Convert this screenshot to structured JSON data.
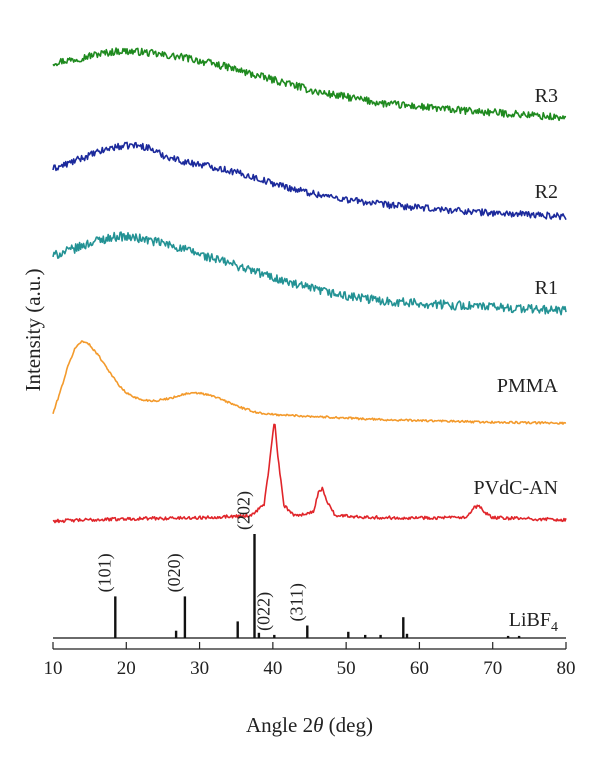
{
  "chart_data": {
    "type": "line",
    "xlabel": "Angle 2θ (deg)",
    "ylabel": "Intensity (a.u.)",
    "xlim": [
      10,
      80
    ],
    "xticks": [
      "10",
      "20",
      "30",
      "40",
      "50",
      "60",
      "70",
      "80"
    ],
    "y_ticks_shown": false,
    "grid": false,
    "legend": "none (series labelled at right end of each trace)",
    "series": [
      {
        "name": "R3",
        "color": "#1f8a1f",
        "noise": 0.045,
        "points": [
          [
            10,
            0.86
          ],
          [
            13,
            0.9
          ],
          [
            16,
            0.96
          ],
          [
            19,
            1.0
          ],
          [
            22,
            0.99
          ],
          [
            25,
            0.95
          ],
          [
            28,
            0.92
          ],
          [
            31,
            0.86
          ],
          [
            34,
            0.8
          ],
          [
            37,
            0.72
          ],
          [
            40,
            0.65
          ],
          [
            43,
            0.58
          ],
          [
            46,
            0.5
          ],
          [
            50,
            0.44
          ],
          [
            55,
            0.36
          ],
          [
            60,
            0.32
          ],
          [
            65,
            0.28
          ],
          [
            70,
            0.25
          ],
          [
            75,
            0.22
          ],
          [
            80,
            0.18
          ]
        ]
      },
      {
        "name": "R2",
        "color": "#1c2a9c",
        "noise": 0.04,
        "points": [
          [
            10,
            0.72
          ],
          [
            12,
            0.78
          ],
          [
            15,
            0.88
          ],
          [
            18,
            0.97
          ],
          [
            21,
            1.0
          ],
          [
            23,
            0.97
          ],
          [
            25,
            0.88
          ],
          [
            28,
            0.8
          ],
          [
            31,
            0.76
          ],
          [
            34,
            0.7
          ],
          [
            37,
            0.63
          ],
          [
            40,
            0.55
          ],
          [
            43,
            0.48
          ],
          [
            46,
            0.42
          ],
          [
            50,
            0.36
          ],
          [
            55,
            0.3
          ],
          [
            60,
            0.26
          ],
          [
            65,
            0.23
          ],
          [
            70,
            0.2
          ],
          [
            75,
            0.18
          ],
          [
            80,
            0.16
          ]
        ]
      },
      {
        "name": "R1",
        "color": "#239294",
        "noise": 0.05,
        "points": [
          [
            10,
            0.78
          ],
          [
            13,
            0.86
          ],
          [
            16,
            0.95
          ],
          [
            19,
            1.0
          ],
          [
            22,
            0.97
          ],
          [
            25,
            0.92
          ],
          [
            28,
            0.85
          ],
          [
            31,
            0.77
          ],
          [
            34,
            0.7
          ],
          [
            37,
            0.62
          ],
          [
            40,
            0.54
          ],
          [
            43,
            0.46
          ],
          [
            46,
            0.4
          ],
          [
            50,
            0.33
          ],
          [
            55,
            0.28
          ],
          [
            60,
            0.25
          ],
          [
            65,
            0.23
          ],
          [
            70,
            0.21
          ],
          [
            75,
            0.19
          ],
          [
            80,
            0.17
          ]
        ]
      },
      {
        "name": "PMMA",
        "color": "#f39a2c",
        "noise": 0.012,
        "points": [
          [
            10,
            0.12
          ],
          [
            11,
            0.38
          ],
          [
            12,
            0.66
          ],
          [
            13,
            0.88
          ],
          [
            14,
            0.97
          ],
          [
            15,
            0.92
          ],
          [
            16,
            0.82
          ],
          [
            17,
            0.7
          ],
          [
            18,
            0.57
          ],
          [
            19,
            0.45
          ],
          [
            20,
            0.36
          ],
          [
            22,
            0.28
          ],
          [
            24,
            0.27
          ],
          [
            26,
            0.3
          ],
          [
            28,
            0.35
          ],
          [
            30,
            0.36
          ],
          [
            32,
            0.32
          ],
          [
            34,
            0.25
          ],
          [
            36,
            0.18
          ],
          [
            38,
            0.13
          ],
          [
            40,
            0.11
          ],
          [
            45,
            0.09
          ],
          [
            50,
            0.07
          ],
          [
            55,
            0.05
          ],
          [
            60,
            0.04
          ],
          [
            70,
            0.02
          ],
          [
            80,
            0.01
          ]
        ]
      },
      {
        "name": "PVdC-AN",
        "color": "#e0252a",
        "noise": 0.015,
        "points": [
          [
            10,
            0.0
          ],
          [
            20,
            0.02
          ],
          [
            30,
            0.03
          ],
          [
            37,
            0.05
          ],
          [
            38.8,
            0.15
          ],
          [
            39.6,
            0.55
          ],
          [
            40.2,
            0.92
          ],
          [
            40.8,
            0.52
          ],
          [
            41.5,
            0.14
          ],
          [
            43,
            0.05
          ],
          [
            45.5,
            0.08
          ],
          [
            46.2,
            0.25
          ],
          [
            46.8,
            0.3
          ],
          [
            47.4,
            0.18
          ],
          [
            48.5,
            0.05
          ],
          [
            55,
            0.03
          ],
          [
            66.5,
            0.03
          ],
          [
            67.5,
            0.12
          ],
          [
            68.1,
            0.14
          ],
          [
            68.8,
            0.08
          ],
          [
            70,
            0.03
          ],
          [
            80,
            0.01
          ]
        ]
      }
    ],
    "stick_pattern": {
      "name": "LiBF₄",
      "name_base": "LiBF",
      "name_subscript": "4",
      "color": "#111111",
      "peaks": [
        [
          18.5,
          0.4
        ],
        [
          26.8,
          0.07
        ],
        [
          28.0,
          0.4
        ],
        [
          35.2,
          0.16
        ],
        [
          37.5,
          1.0
        ],
        [
          38.1,
          0.05
        ],
        [
          40.2,
          0.03
        ],
        [
          44.7,
          0.12
        ],
        [
          50.3,
          0.06
        ],
        [
          52.6,
          0.03
        ],
        [
          54.7,
          0.03
        ],
        [
          57.8,
          0.2
        ],
        [
          58.3,
          0.04
        ],
        [
          72.1,
          0.02
        ],
        [
          73.6,
          0.02
        ]
      ],
      "miller_indices": [
        {
          "label": "(101)",
          "x": 18.5
        },
        {
          "label": "(020)",
          "x": 28.0
        },
        {
          "label": "(202)",
          "x": 37.5
        },
        {
          "label": "(022)",
          "x": 40.2
        },
        {
          "label": "(311)",
          "x": 44.7
        }
      ]
    }
  }
}
